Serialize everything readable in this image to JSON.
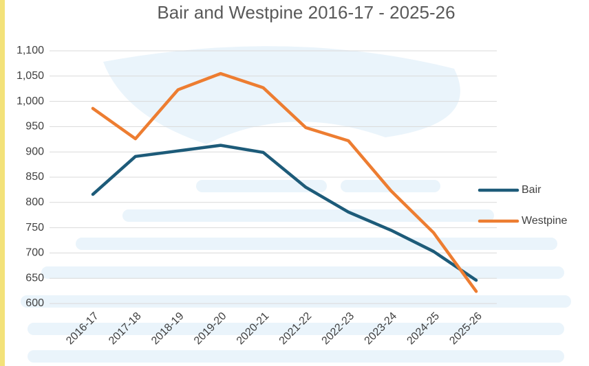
{
  "chart_data": {
    "type": "line",
    "title": "Bair and Westpine 2016-17 - 2025-26",
    "categories": [
      "2016-17",
      "2017-18",
      "2018-19",
      "2019-20",
      "2020-21",
      "2021-22",
      "2022-23",
      "2023-24",
      "2024-25",
      "2025-26"
    ],
    "series": [
      {
        "name": "Bair",
        "color": "#1d5b79",
        "values": [
          816,
          891,
          902,
          913,
          899,
          830,
          781,
          745,
          703,
          646
        ]
      },
      {
        "name": "Westpine",
        "color": "#ed7d31",
        "values": [
          986,
          926,
          1023,
          1055,
          1027,
          948,
          922,
          823,
          740,
          624
        ]
      }
    ],
    "ylim": [
      600,
      1100
    ],
    "yticks": [
      600,
      650,
      700,
      750,
      800,
      850,
      900,
      950,
      {
        "value": 1000,
        "label": "1,000"
      },
      {
        "value": 1050,
        "label": "1,050"
      },
      {
        "value": 1100,
        "label": "1,100"
      }
    ],
    "grid": true,
    "legend": "right"
  }
}
